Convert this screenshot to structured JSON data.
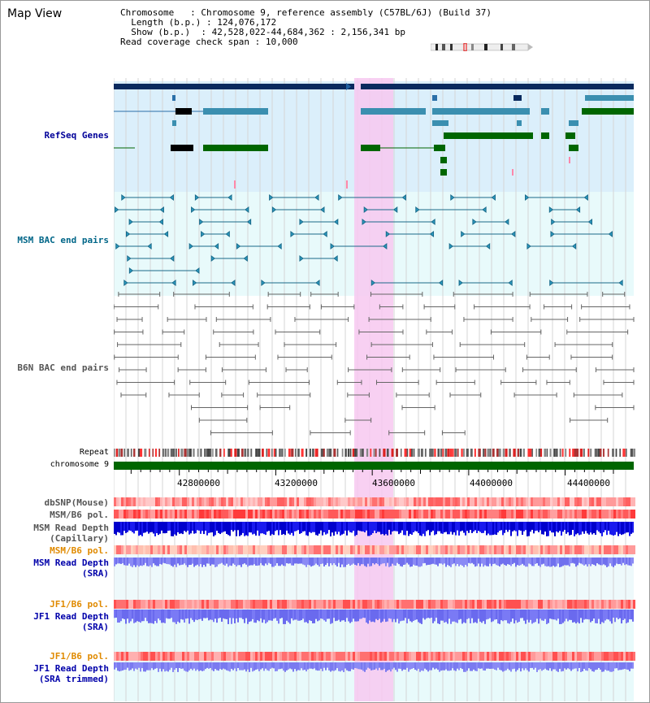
{
  "view_title": "Map View",
  "info": {
    "chromosome_key": "Chromosome",
    "chromosome_val": "Chromosome 9, reference assembly (C57BL/6J) (Build 37)",
    "length_key": "Length (b.p.)",
    "length_val": "124,076,172",
    "show_key": "Show (b.p.)",
    "show_val": "42,528,022-44,684,362 : 2,156,341 bp",
    "span_key": "Read coverage check span",
    "span_val": "10,000"
  },
  "tracks": {
    "refseq": "RefSeq Genes",
    "msm_bac": "MSM BAC end pairs",
    "b6n_bac": "B6N BAC end pairs",
    "repeat": "Repeat",
    "chromosome": "chromosome 9",
    "dbsnp": "dbSNP(Mouse)",
    "msm_b6_pol": "MSM/B6 pol.",
    "msm_read_depth_cap_1": "MSM Read Depth",
    "msm_read_depth_cap_2": "(Capillary)",
    "msm_b6_pol2": "MSM/B6 pol.",
    "msm_read_depth_sra_1": "MSM Read Depth",
    "msm_read_depth_sra_2": "(SRA)",
    "jf1_b6_pol": "JF1/B6 pol.",
    "jf1_read_depth_sra_1": "JF1 Read Depth",
    "jf1_read_depth_sra_2": "(SRA)",
    "jf1_b6_pol2": "JF1/B6 pol.",
    "jf1_read_depth_trim_1": "JF1 Read Depth",
    "jf1_read_depth_trim_2": "(SRA trimmed)"
  },
  "axis": {
    "start": 42528022,
    "end": 44684362,
    "ticks": [
      "42800000",
      "43200000",
      "43600000",
      "44000000",
      "44400000"
    ]
  },
  "colors": {
    "refseq_label": "#000099",
    "msm_label": "#006688",
    "b6n_label": "#555555",
    "pol_label": "#e08a00",
    "depth_label": "#0000aa",
    "highlight": "#f7c8f0",
    "chromosome_bar": "#006600"
  }
}
